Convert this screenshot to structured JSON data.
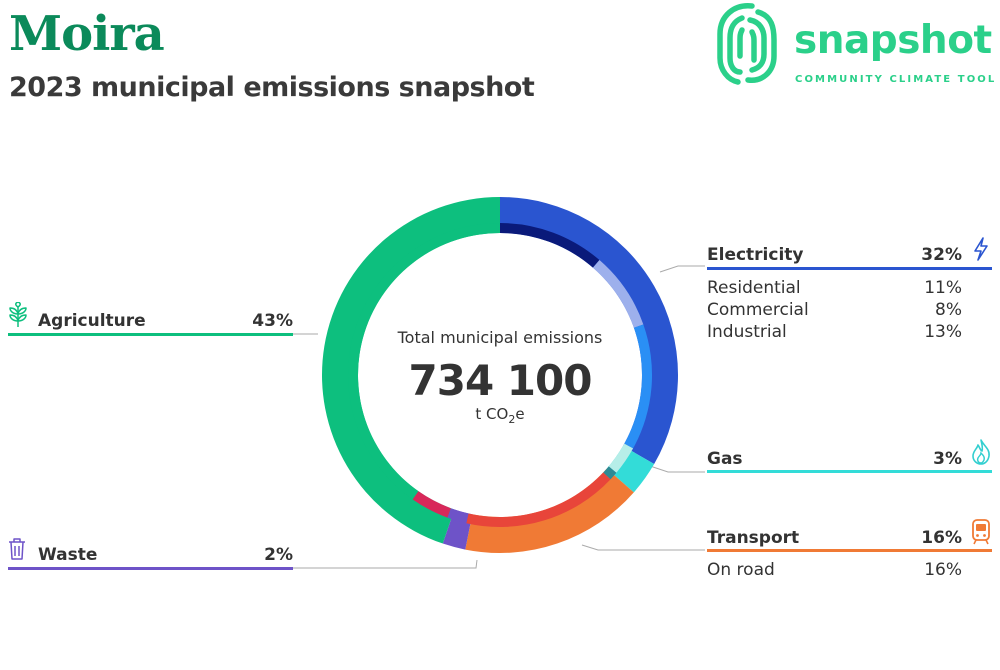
{
  "header": {
    "title": "Moira",
    "subtitle": "2023 municipal emissions snapshot"
  },
  "logo": {
    "wordmark": "snapshot",
    "tagline": "COMMUNITY CLIMATE TOOL",
    "color": "#2bd08a"
  },
  "center": {
    "label": "Total municipal emissions",
    "value": "734 100",
    "unit_prefix": "t CO",
    "unit_sub": "2",
    "unit_suffix": "e"
  },
  "chart_data": {
    "type": "pie",
    "subtype": "donut",
    "total": 734100,
    "unit": "t CO2e",
    "segments": [
      {
        "name": "Electricity",
        "value": 32,
        "color": "#2a55d0"
      },
      {
        "name": "Gas",
        "value": 3,
        "color": "#33dcd8"
      },
      {
        "name": "Transport",
        "value": 16,
        "color": "#f07a35"
      },
      {
        "name": "Waste",
        "value": 2,
        "color": "#6e53c8"
      },
      {
        "name": "Agriculture",
        "value": 43,
        "color": "#0dbf7e"
      }
    ],
    "inner_segments": [
      {
        "name": "Residential",
        "parent": "Electricity",
        "value": 11,
        "color": "#0a1a7a"
      },
      {
        "name": "Commercial",
        "parent": "Electricity",
        "value": 8,
        "color": "#9db0ec"
      },
      {
        "name": "Industrial",
        "parent": "Electricity",
        "value": 13,
        "color": "#2a8ff5"
      },
      {
        "name": "Gas",
        "parent": "Gas",
        "value": 3,
        "color": "#b6eee8"
      },
      {
        "name": "Gas",
        "parent": "Gas",
        "value": 0.9,
        "color": "#2e8a94"
      },
      {
        "name": "On road",
        "parent": "Transport",
        "value": 16,
        "color": "#e8453a"
      },
      {
        "name": "Waste",
        "parent": "Waste",
        "value": 2,
        "color": "#6e53c8"
      },
      {
        "name": "Agriculture-a",
        "parent": "Agriculture",
        "value": 4,
        "color": "#d8285a"
      },
      {
        "name": "Agriculture-b",
        "parent": "Agriculture",
        "value": 39,
        "color": "#0dbf7e"
      }
    ]
  },
  "categories": {
    "electricity": {
      "name": "Electricity",
      "pct": "32%",
      "color": "#2a55d0",
      "icon": "lightning-icon",
      "sub": [
        {
          "name": "Residential",
          "pct": "11%"
        },
        {
          "name": "Commercial",
          "pct": "8%"
        },
        {
          "name": "Industrial",
          "pct": "13%"
        }
      ]
    },
    "gas": {
      "name": "Gas",
      "pct": "3%",
      "color": "#33dcd8",
      "icon": "flame-icon"
    },
    "transport": {
      "name": "Transport",
      "pct": "16%",
      "color": "#f07a35",
      "icon": "train-icon",
      "sub": [
        {
          "name": "On road",
          "pct": "16%"
        }
      ]
    },
    "agriculture": {
      "name": "Agriculture",
      "pct": "43%",
      "color": "#0dbf7e",
      "icon": "plant-icon"
    },
    "waste": {
      "name": "Waste",
      "pct": "2%",
      "color": "#6e53c8",
      "icon": "bin-icon"
    }
  }
}
